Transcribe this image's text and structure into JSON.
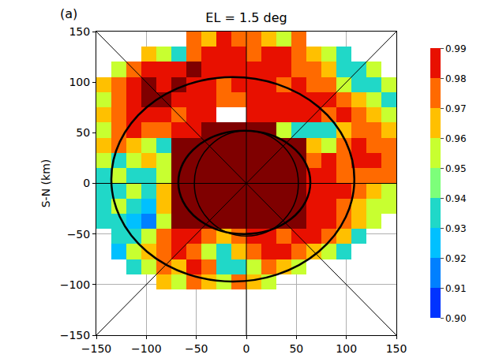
{
  "chart_data": {
    "type": "heatmap",
    "title": "EL = 1.5 deg",
    "panel_label": "(a)",
    "ylabel": "S-N (km)",
    "grid": true,
    "xlim": [
      -150,
      150
    ],
    "ylim": [
      -150,
      150
    ],
    "xticks": [
      {
        "value": -150,
        "label": "−150"
      },
      {
        "value": -100,
        "label": "−100"
      },
      {
        "value": -50,
        "label": "−50"
      },
      0,
      50,
      100,
      150
    ],
    "yticks": [
      {
        "value": -150,
        "label": "−150"
      },
      {
        "value": -100,
        "label": "−100"
      },
      {
        "value": -50,
        "label": "−50"
      },
      0,
      50,
      100,
      150
    ],
    "x": [
      -142.5,
      -127.5,
      -112.5,
      -97.5,
      -82.5,
      -67.5,
      -52.5,
      -37.5,
      -22.5,
      -7.5,
      7.5,
      22.5,
      37.5,
      52.5,
      67.5,
      82.5,
      97.5,
      112.5,
      127.5,
      142.5
    ],
    "y": [
      142.5,
      127.5,
      112.5,
      97.5,
      82.5,
      67.5,
      52.5,
      37.5,
      22.5,
      7.5,
      -7.5,
      -22.5,
      -37.5,
      -52.5,
      -67.5,
      -82.5,
      -97.5
    ],
    "z": [
      [
        null,
        null,
        null,
        null,
        null,
        null,
        0.97,
        0.96,
        0.98,
        0.97,
        0.975,
        0.96,
        0.95,
        0.97,
        null,
        null,
        null,
        null,
        null,
        null
      ],
      [
        null,
        null,
        null,
        0.96,
        0.95,
        0.94,
        0.97,
        0.98,
        0.985,
        0.98,
        0.97,
        0.985,
        0.98,
        0.97,
        0.96,
        0.95,
        0.93,
        null,
        null,
        null
      ],
      [
        null,
        0.95,
        0.97,
        0.98,
        0.985,
        0.985,
        0.995,
        0.985,
        0.98,
        0.985,
        0.98,
        0.985,
        0.98,
        0.975,
        0.97,
        0.96,
        0.94,
        0.93,
        0.95,
        null
      ],
      [
        0.96,
        0.975,
        0.985,
        0.995,
        0.985,
        0.995,
        0.985,
        0.98,
        0.975,
        0.98,
        0.985,
        0.98,
        0.975,
        0.98,
        0.97,
        0.97,
        0.95,
        0.93,
        0.94,
        0.95
      ],
      [
        0.95,
        0.97,
        0.985,
        0.995,
        0.995,
        0.985,
        0.98,
        0.985,
        0.975,
        0.97,
        0.985,
        0.98,
        0.985,
        0.98,
        0.985,
        0.98,
        0.97,
        0.96,
        0.95,
        0.94
      ],
      [
        0.96,
        0.975,
        0.985,
        0.985,
        0.98,
        0.975,
        0.985,
        0.98,
        null,
        null,
        0.985,
        0.98,
        0.985,
        0.98,
        0.985,
        0.975,
        0.98,
        0.97,
        0.96,
        0.95
      ],
      [
        0.95,
        0.97,
        0.98,
        0.975,
        0.97,
        0.98,
        0.985,
        0.995,
        0.995,
        0.995,
        0.995,
        0.99,
        0.95,
        0.94,
        0.93,
        0.94,
        0.96,
        0.97,
        0.975,
        0.96
      ],
      [
        0.96,
        0.97,
        0.96,
        0.95,
        0.94,
        0.995,
        0.995,
        0.995,
        0.995,
        0.995,
        0.995,
        0.995,
        0.995,
        0.995,
        0.96,
        0.95,
        0.97,
        0.98,
        0.975,
        0.97
      ],
      [
        0.95,
        0.94,
        0.95,
        0.96,
        0.95,
        0.995,
        0.995,
        0.995,
        0.995,
        0.995,
        0.995,
        0.995,
        0.995,
        0.995,
        0.97,
        0.98,
        0.975,
        0.985,
        0.98,
        0.97
      ],
      [
        0.94,
        0.95,
        0.94,
        0.93,
        0.95,
        0.995,
        0.995,
        0.995,
        0.995,
        0.995,
        0.995,
        0.995,
        0.995,
        0.995,
        0.985,
        0.98,
        0.975,
        0.97,
        0.975,
        0.97
      ],
      [
        0.93,
        0.94,
        0.95,
        0.94,
        0.96,
        0.995,
        0.995,
        0.995,
        0.995,
        0.995,
        0.995,
        0.995,
        0.995,
        0.995,
        0.98,
        0.985,
        0.98,
        0.97,
        0.96,
        0.95
      ],
      [
        0.94,
        0.95,
        0.93,
        0.92,
        0.96,
        0.995,
        0.995,
        0.995,
        0.995,
        0.995,
        0.995,
        0.995,
        0.995,
        0.995,
        0.985,
        0.98,
        0.97,
        0.96,
        0.95,
        0.95
      ],
      [
        0.93,
        0.94,
        0.92,
        0.91,
        0.95,
        0.995,
        0.995,
        0.995,
        0.995,
        0.995,
        0.995,
        0.995,
        0.995,
        0.995,
        0.985,
        0.98,
        0.975,
        0.96,
        0.95,
        null
      ],
      [
        null,
        0.93,
        0.94,
        0.95,
        0.97,
        0.98,
        0.985,
        0.97,
        0.96,
        0.975,
        0.985,
        0.98,
        0.97,
        0.985,
        0.98,
        0.97,
        0.96,
        0.94,
        null,
        null
      ],
      [
        null,
        0.92,
        0.95,
        0.96,
        0.975,
        0.98,
        0.97,
        0.95,
        0.94,
        0.96,
        0.97,
        0.985,
        0.98,
        0.97,
        0.96,
        0.95,
        0.94,
        null,
        null,
        null
      ],
      [
        null,
        null,
        0.93,
        0.95,
        0.97,
        0.96,
        0.98,
        0.97,
        0.94,
        0.93,
        0.95,
        0.97,
        0.96,
        0.95,
        null,
        null,
        null,
        null,
        null,
        null
      ],
      [
        null,
        null,
        null,
        null,
        0.96,
        0.95,
        0.97,
        0.96,
        0.95,
        0.97,
        0.96,
        0.95,
        null,
        null,
        null,
        null,
        null,
        null,
        null,
        null
      ]
    ],
    "colorbar": {
      "range": [
        0.9,
        0.99
      ],
      "ticks": [
        {
          "value": 0.9,
          "label": "0.90"
        },
        0.91,
        0.92,
        0.93,
        0.94,
        0.95,
        0.96,
        0.97,
        0.98,
        0.99
      ]
    },
    "rings": [
      {
        "x": [
          -135,
          108
        ],
        "y": [
          -97,
          105
        ]
      },
      {
        "x": [
          -68,
          64
        ],
        "y": [
          -50,
          52
        ]
      },
      {
        "x": [
          -52,
          52
        ],
        "y": [
          -52,
          52
        ]
      }
    ]
  }
}
